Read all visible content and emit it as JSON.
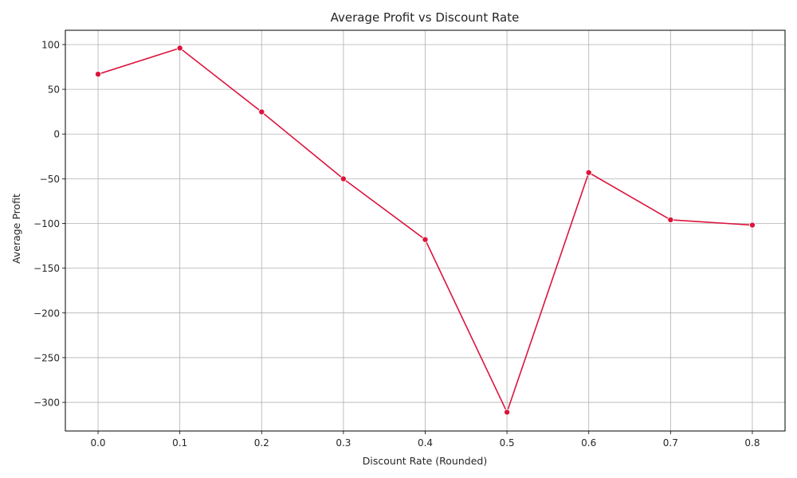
{
  "chart_data": {
    "type": "line",
    "title": "Average Profit vs Discount Rate",
    "xlabel": "Discount Rate (Rounded)",
    "ylabel": "Average Profit",
    "x": [
      0.0,
      0.1,
      0.2,
      0.3,
      0.4,
      0.5,
      0.6,
      0.7,
      0.8
    ],
    "series": [
      {
        "name": "Average Profit",
        "values": [
          66.9,
          96.1,
          24.7,
          -50.1,
          -118.0,
          -311.0,
          -43.1,
          -95.9,
          -101.8
        ]
      }
    ],
    "xlim": [
      -0.04,
      0.84
    ],
    "ylim": [
      -332.0,
      116.0
    ],
    "xticks": [
      0.0,
      0.1,
      0.2,
      0.3,
      0.4,
      0.5,
      0.6,
      0.7,
      0.8
    ],
    "xtick_labels": [
      "0.0",
      "0.1",
      "0.2",
      "0.3",
      "0.4",
      "0.5",
      "0.6",
      "0.7",
      "0.8"
    ],
    "yticks": [
      100,
      50,
      0,
      -50,
      -100,
      -150,
      -200,
      -250,
      -300
    ],
    "ytick_labels": [
      "100",
      "50",
      "0",
      "−50",
      "−100",
      "−150",
      "−200",
      "−250",
      "−300"
    ],
    "grid": true,
    "line_color": "#dc143c",
    "grid_color": "#b0b0b0"
  }
}
